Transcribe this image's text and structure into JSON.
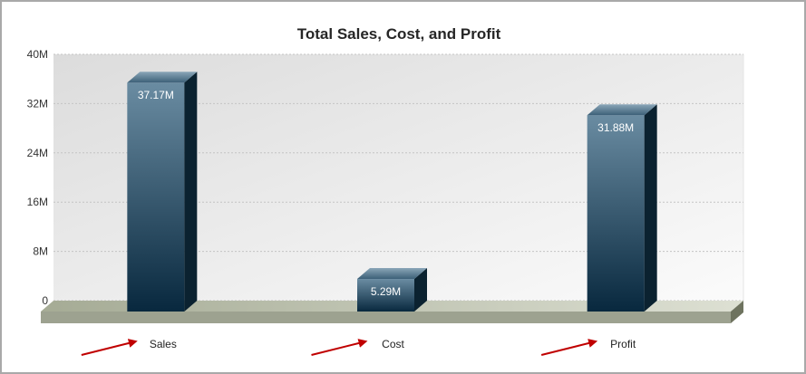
{
  "chart_data": {
    "type": "bar",
    "title": "Total Sales, Cost, and Profit",
    "categories": [
      "Sales",
      "Cost",
      "Profit"
    ],
    "values": [
      37170000,
      5290000,
      31880000
    ],
    "data_labels": [
      "37.17M",
      "5.29M",
      "31.88M"
    ],
    "ylim": [
      0,
      40000000
    ],
    "yticks": [
      0,
      8000000,
      16000000,
      24000000,
      32000000,
      40000000
    ],
    "ytick_labels": [
      "0",
      "8M",
      "16M",
      "24M",
      "32M",
      "40M"
    ],
    "grid": true,
    "style": "3d",
    "bar_color": "#1f4560",
    "floor_color": "#b3b8a6",
    "annotation_color": "#c00000"
  }
}
